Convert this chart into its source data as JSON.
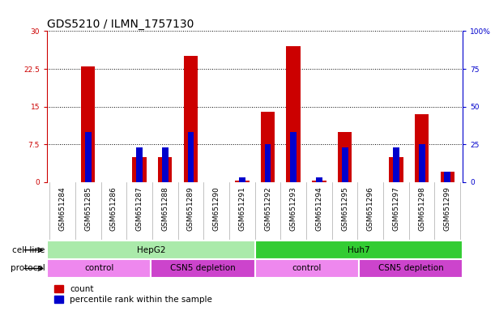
{
  "title": "GDS5210 / ILMN_1757130",
  "samples": [
    "GSM651284",
    "GSM651285",
    "GSM651286",
    "GSM651287",
    "GSM651288",
    "GSM651289",
    "GSM651290",
    "GSM651291",
    "GSM651292",
    "GSM651293",
    "GSM651294",
    "GSM651295",
    "GSM651296",
    "GSM651297",
    "GSM651298",
    "GSM651299"
  ],
  "count_values": [
    0,
    23,
    0,
    5,
    5,
    25,
    0,
    0.3,
    14,
    27,
    0.3,
    10,
    0,
    5,
    13.5,
    2
  ],
  "percentile_values": [
    0,
    33,
    0,
    23,
    23,
    33,
    0,
    3,
    25,
    33,
    3,
    23,
    0,
    23,
    25,
    7
  ],
  "ylim_left": [
    0,
    30
  ],
  "ylim_right": [
    0,
    100
  ],
  "yticks_left": [
    0,
    7.5,
    15,
    22.5,
    30
  ],
  "yticks_left_labels": [
    "0",
    "7.5",
    "15",
    "22.5",
    "30"
  ],
  "yticks_right": [
    0,
    25,
    50,
    75,
    100
  ],
  "yticks_right_labels": [
    "0",
    "25",
    "50",
    "75",
    "100%"
  ],
  "bar_color": "#cc0000",
  "percentile_color": "#0000cc",
  "left_tick_color": "#cc0000",
  "right_tick_color": "#0000cc",
  "cell_line_groups": [
    {
      "label": "HepG2",
      "start": 0,
      "end": 8,
      "color": "#aaeaaa"
    },
    {
      "label": "Huh7",
      "start": 8,
      "end": 16,
      "color": "#33cc33"
    }
  ],
  "protocol_groups": [
    {
      "label": "control",
      "start": 0,
      "end": 4,
      "color": "#ee88ee"
    },
    {
      "label": "CSN5 depletion",
      "start": 4,
      "end": 8,
      "color": "#cc44cc"
    },
    {
      "label": "control",
      "start": 8,
      "end": 12,
      "color": "#ee88ee"
    },
    {
      "label": "CSN5 depletion",
      "start": 12,
      "end": 16,
      "color": "#cc44cc"
    }
  ],
  "legend_count_label": "count",
  "legend_percentile_label": "percentile rank within the sample",
  "cell_line_row_label": "cell line",
  "protocol_row_label": "protocol",
  "bar_width": 0.55,
  "pct_bar_width": 0.25,
  "bg_color": "#ffffff",
  "plot_bg_color": "#ffffff",
  "grid_color": "#000000",
  "title_fontsize": 10,
  "tick_fontsize": 6.5,
  "label_fontsize": 7.5,
  "xtick_area_color": "#d8d8d8"
}
